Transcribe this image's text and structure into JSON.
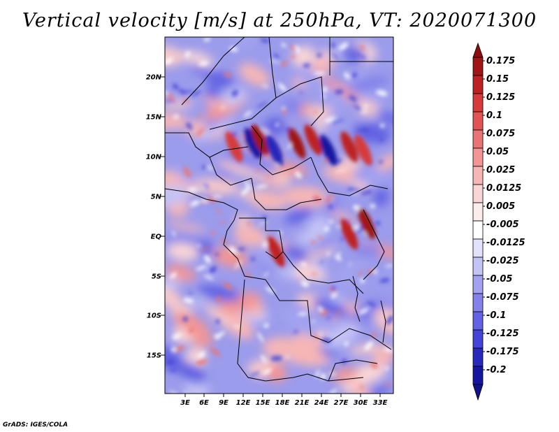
{
  "title": "Vertical velocity [m/s] at 250hPa, VT: 2020071300",
  "footer": "GrADS: IGES/COLA",
  "map": {
    "lat_labels": [
      "20N",
      "15N",
      "10N",
      "5N",
      "EQ",
      "5S",
      "10S",
      "15S"
    ],
    "lon_labels": [
      "3E",
      "6E",
      "9E",
      "12E",
      "15E",
      "18E",
      "21E",
      "24E",
      "27E",
      "30E",
      "33E"
    ]
  },
  "colorbar": {
    "labels": [
      "0.175",
      "0.15",
      "0.125",
      "0.1",
      "0.075",
      "0.05",
      "0.025",
      "0.0125",
      "0.005",
      "-0.005",
      "-0.0125",
      "-0.025",
      "-0.05",
      "-0.075",
      "-0.1",
      "-0.125",
      "-0.175",
      "-0.2"
    ],
    "colors": [
      "#a01515",
      "#bd2222",
      "#d63a3a",
      "#e25454",
      "#ea7474",
      "#f29595",
      "#f6b6b6",
      "#fad5d5",
      "#fcecec",
      "#ffffff",
      "#e2e2fb",
      "#c3c3f6",
      "#a2a2f0",
      "#8282ea",
      "#6262e2",
      "#4444d6",
      "#2828bb",
      "#1515a0"
    ],
    "top_arrow_color": "#8b0d0d",
    "bottom_arrow_color": "#12128b"
  },
  "colors": {
    "background_pink": "#f7c9c9",
    "background_blue": "#9c9cec",
    "border": "#000000"
  }
}
